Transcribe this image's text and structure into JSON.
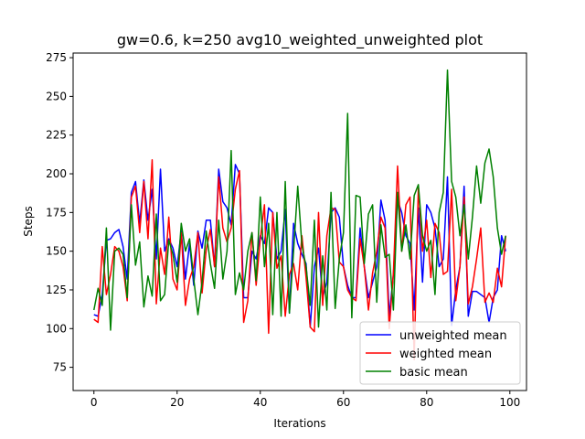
{
  "chart_data": {
    "type": "line",
    "title": "gw=0.6, k=250 avg10_weighted_unweighted plot",
    "xlabel": "Iterations",
    "ylabel": "Steps",
    "xlim": [
      -5,
      104
    ],
    "ylim": [
      60,
      278
    ],
    "xticks": [
      0,
      20,
      40,
      60,
      80,
      100
    ],
    "yticks": [
      75,
      100,
      125,
      150,
      175,
      200,
      225,
      250,
      275
    ],
    "grid": false,
    "legend_position": "lower-right",
    "x": [
      0,
      1,
      2,
      3,
      4,
      5,
      6,
      7,
      8,
      9,
      10,
      11,
      12,
      13,
      14,
      15,
      16,
      17,
      18,
      19,
      20,
      21,
      22,
      23,
      24,
      25,
      26,
      27,
      28,
      29,
      30,
      31,
      32,
      33,
      34,
      35,
      36,
      37,
      38,
      39,
      40,
      41,
      42,
      43,
      44,
      45,
      46,
      47,
      48,
      49,
      50,
      51,
      52,
      53,
      54,
      55,
      56,
      57,
      58,
      59,
      60,
      61,
      62,
      63,
      64,
      65,
      66,
      67,
      68,
      69,
      70,
      71,
      72,
      73,
      74,
      75,
      76,
      77,
      78,
      79,
      80,
      81,
      82,
      83,
      84,
      85,
      86,
      87,
      88,
      89,
      90,
      91,
      92,
      93,
      94,
      95,
      96,
      97,
      98,
      99
    ],
    "series": [
      {
        "name": "unweighted mean",
        "color": "#0000ff",
        "values": [
          109,
          108,
          122,
          157,
          158,
          162,
          164,
          153,
          132,
          188,
          195,
          168,
          196,
          170,
          190,
          145,
          203,
          150,
          158,
          152,
          140,
          163,
          132,
          155,
          128,
          163,
          152,
          170,
          170,
          140,
          203,
          182,
          178,
          167,
          206,
          200,
          120,
          120,
          150,
          145,
          160,
          155,
          178,
          175,
          145,
          150,
          177,
          110,
          168,
          155,
          148,
          142,
          101,
          140,
          152,
          120,
          130,
          175,
          178,
          172,
          140,
          128,
          120,
          120,
          165,
          140,
          120,
          130,
          140,
          183,
          170,
          108,
          135,
          183,
          175,
          160,
          155,
          112,
          178,
          130,
          180,
          175,
          165,
          140,
          145,
          198,
          102,
          125,
          140,
          192,
          108,
          124,
          124,
          122,
          120,
          104,
          120,
          125,
          160,
          150
        ],
        "line_width": 1.5
      },
      {
        "name": "weighted mean",
        "color": "#ff0000",
        "values": [
          106,
          104,
          153,
          122,
          135,
          153,
          150,
          140,
          118,
          185,
          192,
          162,
          195,
          158,
          209,
          116,
          152,
          135,
          172,
          132,
          125,
          162,
          115,
          132,
          140,
          162,
          123,
          151,
          164,
          140,
          198,
          165,
          156,
          165,
          190,
          202,
          104,
          118,
          162,
          128,
          158,
          180,
          97,
          175,
          139,
          147,
          108,
          135,
          142,
          125,
          160,
          133,
          101,
          98,
          175,
          115,
          160,
          178,
          177,
          143,
          140,
          125,
          120,
          118,
          158,
          140,
          112,
          136,
          150,
          172,
          165,
          100,
          136,
          205,
          150,
          180,
          185,
          80,
          192,
          150,
          170,
          133,
          168,
          162,
          135,
          137,
          190,
          118,
          140,
          185,
          116,
          127,
          145,
          165,
          117,
          123,
          117,
          139,
          127,
          160
        ],
        "line_width": 1.5
      },
      {
        "name": "basic mean",
        "color": "#008000",
        "values": [
          112,
          126,
          115,
          165,
          99,
          150,
          152,
          148,
          120,
          180,
          141,
          156,
          114,
          134,
          121,
          174,
          118,
          122,
          157,
          148,
          130,
          168,
          150,
          158,
          132,
          109,
          130,
          163,
          142,
          126,
          170,
          132,
          150,
          215,
          122,
          136,
          125,
          150,
          162,
          131,
          185,
          140,
          168,
          109,
          175,
          108,
          195,
          110,
          150,
          192,
          154,
          140,
          115,
          170,
          101,
          147,
          112,
          188,
          113,
          145,
          162,
          239,
          107,
          186,
          185,
          142,
          174,
          180,
          117,
          167,
          146,
          148,
          112,
          188,
          150,
          167,
          145,
          186,
          193,
          160,
          150,
          157,
          122,
          175,
          188,
          267,
          195,
          185,
          160,
          180,
          145,
          172,
          205,
          181,
          207,
          216,
          198,
          165,
          148,
          160
        ],
        "line_width": 1.5
      }
    ]
  }
}
